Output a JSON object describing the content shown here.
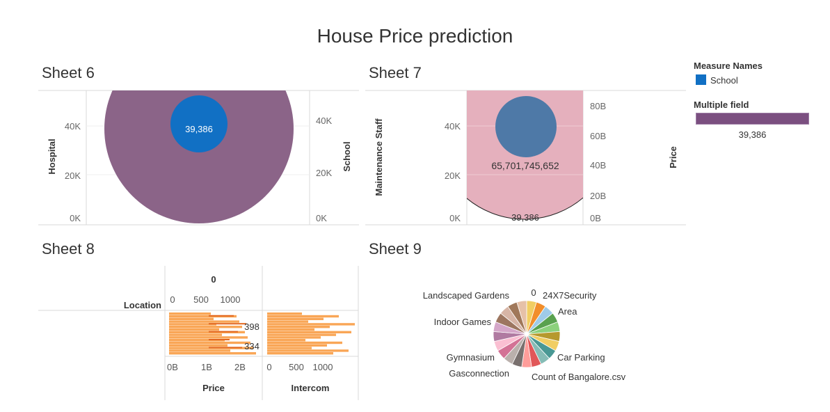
{
  "dashboard": {
    "title": "House Price prediction"
  },
  "legend": {
    "measure_names_title": "Measure Names",
    "measure_names_item": "School",
    "measure_names_color": "#1170c4",
    "multiple_field_title": "Multiple field",
    "multiple_field_color": "#7b4f80",
    "multiple_field_value": "39,386"
  },
  "chart_data": [
    {
      "sheet": "Sheet 6",
      "type": "scatter",
      "ylabel_left": "Hospital",
      "ylabel_right": "School",
      "left_ticks": [
        "0K",
        "20K",
        "40K"
      ],
      "right_ticks": [
        "0K",
        "20K",
        "40K"
      ],
      "marks": [
        {
          "name": "Multiple field",
          "label": "",
          "color": "#8b6488"
        },
        {
          "name": "School",
          "label": "39,386",
          "color": "#1170c4"
        }
      ]
    },
    {
      "sheet": "Sheet 7",
      "type": "scatter",
      "ylabel_left": "Maintenance Staff",
      "ylabel_right": "Price",
      "left_ticks": [
        "0K",
        "20K",
        "40K"
      ],
      "right_ticks": [
        "0B",
        "20B",
        "40B",
        "60B",
        "80B"
      ],
      "marks": [
        {
          "name": "Price",
          "label": "65,701,745,652",
          "color": "#4e79a7"
        },
        {
          "name": "Maintenance Staff",
          "label": "39,386",
          "color": "#e5b0bd"
        }
      ]
    },
    {
      "sheet": "Sheet 8",
      "type": "bar",
      "row_label": "Location",
      "top_header": "0",
      "top_ticks": [
        "0",
        "500",
        "1000"
      ],
      "bottom_ticks_price": [
        "0B",
        "1B",
        "2B"
      ],
      "bottom_ticks_intercom": [
        "0",
        "500",
        "1000"
      ],
      "xlabel_price": "Price",
      "xlabel_intercom": "Intercom",
      "bar_labels": [
        "398",
        "334"
      ],
      "color": "#f9a656",
      "dark_color": "#e2671f"
    },
    {
      "sheet": "Sheet 9",
      "type": "pie",
      "slice_labels": [
        "0",
        "24X7Security",
        "Area",
        "Car Parking",
        "Count of Bangalore.csv",
        "Gasconnection",
        "Gymnasium",
        "Indoor Games",
        "Landscaped Gardens"
      ],
      "colors": [
        "#f1ce63",
        "#f28e2b",
        "#9fcbe8",
        "#59a14f",
        "#8cd17d",
        "#b6992d",
        "#f1ce63",
        "#499894",
        "#86bcb6",
        "#e15759",
        "#ff9d9a",
        "#79706e",
        "#bab0ac",
        "#d37295",
        "#fabfd2",
        "#b07aa1",
        "#d4a6c8",
        "#9d7660",
        "#d7b5a6",
        "#a0785a",
        "#e6c1a8"
      ]
    }
  ]
}
